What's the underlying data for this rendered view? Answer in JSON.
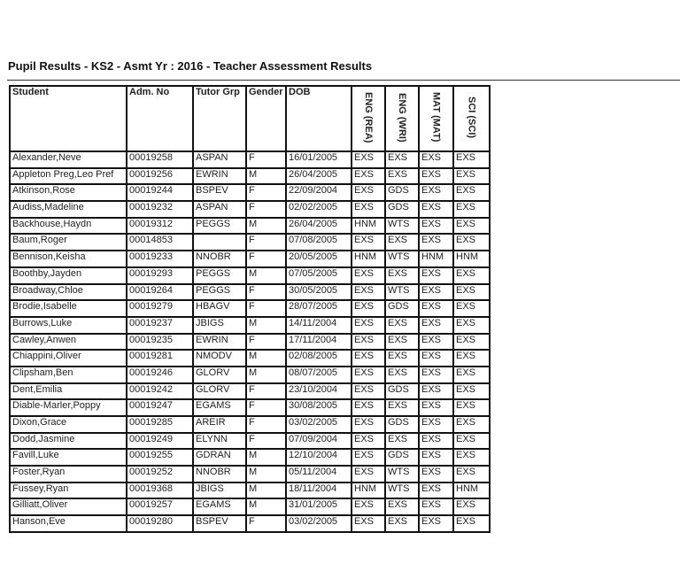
{
  "report": {
    "title": "Pupil Results - KS2 - Asmt Yr : 2016 - Teacher Assessment Results"
  },
  "table": {
    "headers": [
      "Student",
      "Adm. No",
      "Tutor Grp",
      "Gender",
      "DOB",
      "ENG (REA)",
      "ENG (WRI)",
      "MAT (MAT)",
      "SCI (SCI)"
    ],
    "rows": [
      [
        "Alexander,Neve",
        "00019258",
        "ASPAN",
        "F",
        "16/01/2005",
        "EXS",
        "EXS",
        "EXS",
        "EXS"
      ],
      [
        "Appleton Preg,Leo Pref",
        "00019256",
        "EWRIN",
        "M",
        "26/04/2005",
        "EXS",
        "EXS",
        "EXS",
        "EXS"
      ],
      [
        "Atkinson,Rose",
        "00019244",
        "BSPEV",
        "F",
        "22/09/2004",
        "EXS",
        "GDS",
        "EXS",
        "EXS"
      ],
      [
        "Audiss,Madeline",
        "00019232",
        "ASPAN",
        "F",
        "02/02/2005",
        "EXS",
        "GDS",
        "EXS",
        "EXS"
      ],
      [
        "Backhouse,Haydn",
        "00019312",
        "PEGGS",
        "M",
        "26/04/2005",
        "HNM",
        "WTS",
        "EXS",
        "EXS"
      ],
      [
        "Baum,Roger",
        "00014853",
        "",
        "F",
        "07/08/2005",
        "EXS",
        "EXS",
        "EXS",
        "EXS"
      ],
      [
        "Bennison,Keisha",
        "00019233",
        "NNOBR",
        "F",
        "20/05/2005",
        "HNM",
        "WTS",
        "HNM",
        "HNM"
      ],
      [
        "Boothby,Jayden",
        "00019293",
        "PEGGS",
        "M",
        "07/05/2005",
        "EXS",
        "EXS",
        "EXS",
        "EXS"
      ],
      [
        "Broadway,Chloe",
        "00019264",
        "PEGGS",
        "F",
        "30/05/2005",
        "EXS",
        "WTS",
        "EXS",
        "EXS"
      ],
      [
        "Brodie,Isabelle",
        "00019279",
        "HBAGV",
        "F",
        "28/07/2005",
        "EXS",
        "GDS",
        "EXS",
        "EXS"
      ],
      [
        "Burrows,Luke",
        "00019237",
        "JBIGS",
        "M",
        "14/11/2004",
        "EXS",
        "EXS",
        "EXS",
        "EXS"
      ],
      [
        "Cawley,Anwen",
        "00019235",
        "EWRIN",
        "F",
        "17/11/2004",
        "EXS",
        "EXS",
        "EXS",
        "EXS"
      ],
      [
        "Chiappini,Oliver",
        "00019281",
        "NMODV",
        "M",
        "02/08/2005",
        "EXS",
        "EXS",
        "EXS",
        "EXS"
      ],
      [
        "Clipsham,Ben",
        "00019246",
        "GLORV",
        "M",
        "08/07/2005",
        "EXS",
        "EXS",
        "EXS",
        "EXS"
      ],
      [
        "Dent,Emilia",
        "00019242",
        "GLORV",
        "F",
        "23/10/2004",
        "EXS",
        "GDS",
        "EXS",
        "EXS"
      ],
      [
        "Diable-Marler,Poppy",
        "00019247",
        "EGAMS",
        "F",
        "30/08/2005",
        "EXS",
        "EXS",
        "EXS",
        "EXS"
      ],
      [
        "Dixon,Grace",
        "00019285",
        "AREIR",
        "F",
        "03/02/2005",
        "EXS",
        "GDS",
        "EXS",
        "EXS"
      ],
      [
        "Dodd,Jasmine",
        "00019249",
        "ELYNN",
        "F",
        "07/09/2004",
        "EXS",
        "EXS",
        "EXS",
        "EXS"
      ],
      [
        "Favill,Luke",
        "00019255",
        "GDRAN",
        "M",
        "12/10/2004",
        "EXS",
        "GDS",
        "EXS",
        "EXS"
      ],
      [
        "Foster,Ryan",
        "00019252",
        "NNOBR",
        "M",
        "05/11/2004",
        "EXS",
        "WTS",
        "EXS",
        "EXS"
      ],
      [
        "Fussey,Ryan",
        "00019368",
        "JBIGS",
        "M",
        "18/11/2004",
        "HNM",
        "WTS",
        "EXS",
        "HNM"
      ],
      [
        "Gilliatt,Oliver",
        "00019257",
        "EGAMS",
        "M",
        "31/01/2005",
        "EXS",
        "EXS",
        "EXS",
        "EXS"
      ],
      [
        "Hanson,Eve",
        "00019280",
        "BSPEV",
        "F",
        "03/02/2005",
        "EXS",
        "EXS",
        "EXS",
        "EXS"
      ]
    ]
  }
}
